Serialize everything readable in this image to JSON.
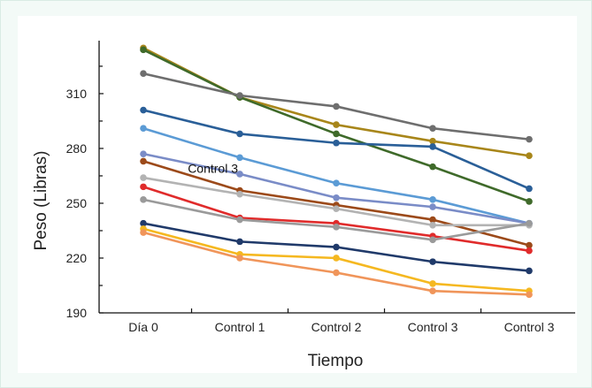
{
  "chart_data": {
    "type": "line",
    "xlabel": "Tiempo",
    "ylabel": "Peso (Libras)",
    "categories": [
      "Día 0",
      "Control 1",
      "Control 2",
      "Control 3",
      "Control 3"
    ],
    "yticks": [
      "190",
      "220",
      "250",
      "280",
      "310"
    ],
    "ylim": [
      190,
      339
    ],
    "grid": false,
    "annotations": [
      {
        "text": "Control 3",
        "x_category_index": 0.8,
        "y": 269
      }
    ],
    "series": [
      {
        "color": "#a8861a",
        "values": [
          335,
          308,
          293,
          284,
          276
        ]
      },
      {
        "color": "#3f6a2a",
        "values": [
          334,
          308,
          288,
          270,
          251
        ]
      },
      {
        "color": "#6e6e6e",
        "values": [
          321,
          309,
          303,
          291,
          285
        ]
      },
      {
        "color": "#2a5f98",
        "values": [
          301,
          288,
          283,
          281,
          258
        ]
      },
      {
        "color": "#5b9bd5",
        "values": [
          291,
          275,
          261,
          252,
          239
        ]
      },
      {
        "color": "#7a8cc7",
        "values": [
          277,
          266,
          253,
          248,
          239
        ]
      },
      {
        "color": "#9c4a1a",
        "values": [
          273,
          257,
          249,
          241,
          227
        ]
      },
      {
        "color": "#b3b3b3",
        "values": [
          264,
          255,
          247,
          238,
          238
        ]
      },
      {
        "color": "#e02b2b",
        "values": [
          259,
          242,
          239,
          232,
          224
        ]
      },
      {
        "color": "#9a9a9a",
        "values": [
          252,
          241,
          237,
          230,
          239
        ]
      },
      {
        "color": "#203a6a",
        "values": [
          239,
          229,
          226,
          218,
          213
        ]
      },
      {
        "color": "#f5b820",
        "values": [
          236,
          222,
          220,
          206,
          202
        ]
      },
      {
        "color": "#f0955a",
        "values": [
          234,
          220,
          212,
          202,
          200
        ]
      }
    ]
  }
}
